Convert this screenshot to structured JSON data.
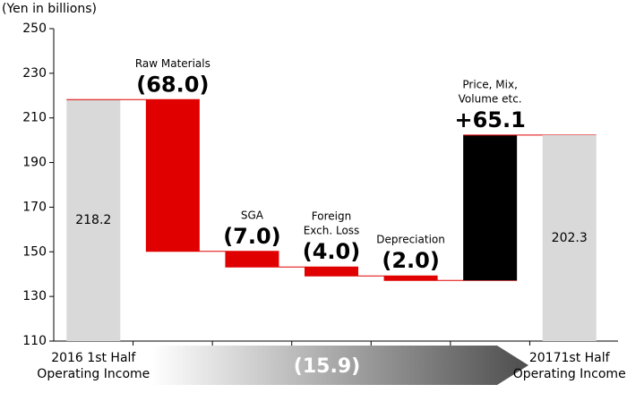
{
  "chart_data": {
    "type": "waterfall",
    "axis_label": "(Yen in billions)",
    "categories": [
      [
        "2016 1st Half",
        "Operating Income"
      ],
      [
        "Raw Materials"
      ],
      [
        "SGA"
      ],
      [
        "Foreign",
        "Exch. Loss"
      ],
      [
        "Depreciation"
      ],
      [
        "Price, Mix,",
        "Volume etc."
      ],
      [
        "20171st Half",
        "Operating Income"
      ]
    ],
    "values": [
      218.2,
      -68.0,
      -7.0,
      -4.0,
      -2.0,
      65.1,
      202.3
    ],
    "value_labels": [
      "218.2",
      "(68.0)",
      "(7.0)",
      "(4.0)",
      "(2.0)",
      "+65.1",
      "202.3"
    ],
    "is_total": [
      true,
      false,
      false,
      false,
      false,
      false,
      true
    ],
    "colors": [
      "#d9d9d9",
      "#e00000",
      "#e00000",
      "#e00000",
      "#e00000",
      "#000000",
      "#d9d9d9"
    ],
    "connector_color": "#e00000",
    "total_change": {
      "value": -15.9,
      "label": "(15.9)"
    },
    "ylim": [
      110,
      250
    ],
    "yticks": [
      110,
      130,
      150,
      170,
      190,
      210,
      230,
      250
    ]
  }
}
